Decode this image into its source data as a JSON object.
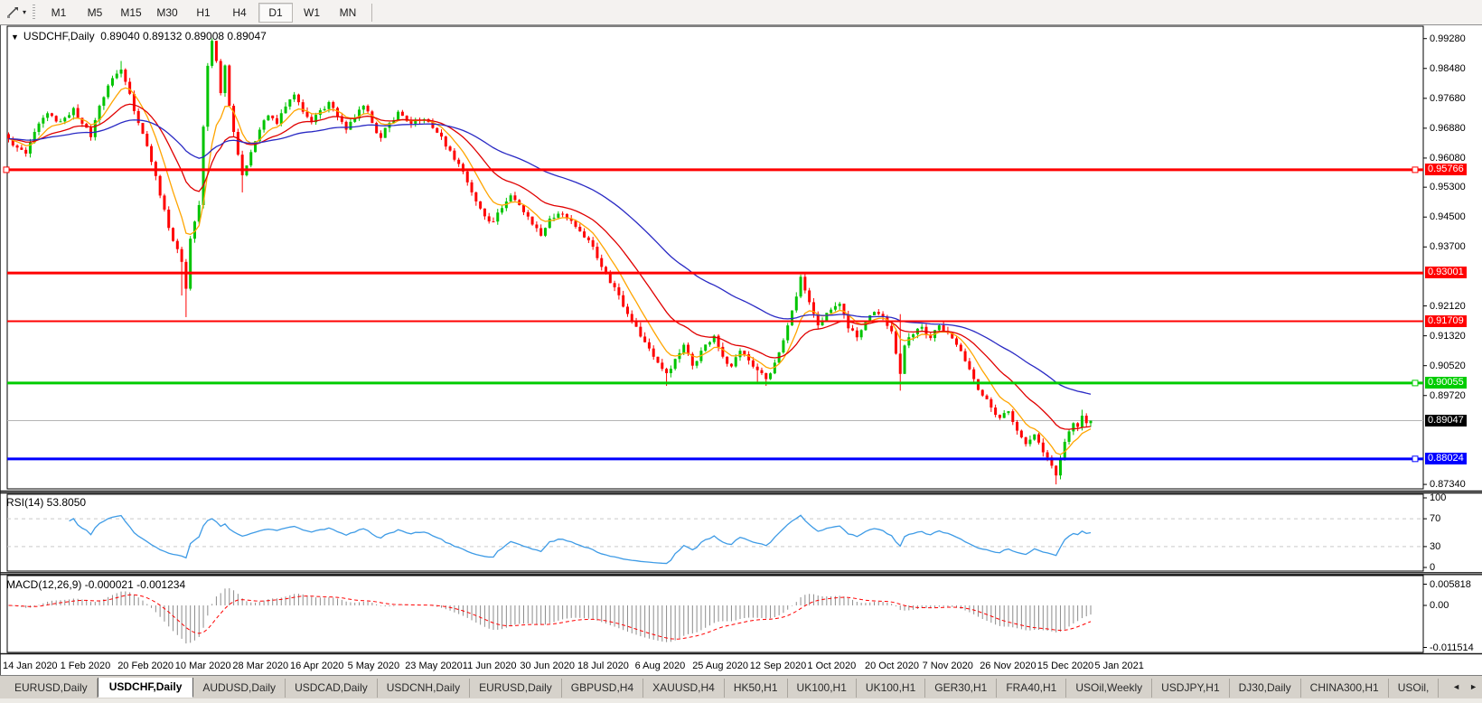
{
  "toolbar": {
    "tool_icon": "trendline-cursor",
    "timeframes": [
      {
        "label": "M1",
        "active": false
      },
      {
        "label": "M5",
        "active": false
      },
      {
        "label": "M15",
        "active": false
      },
      {
        "label": "M30",
        "active": false
      },
      {
        "label": "H1",
        "active": false
      },
      {
        "label": "H4",
        "active": false
      },
      {
        "label": "D1",
        "active": true
      },
      {
        "label": "W1",
        "active": false
      },
      {
        "label": "MN",
        "active": false
      }
    ]
  },
  "chart": {
    "title": "USDCHF,Daily",
    "quotes": "0.89040 0.89132 0.89008 0.89047",
    "dropdown_glyph": "▼",
    "axis_ticks": [
      {
        "label": "0.99280",
        "price": 0.9928
      },
      {
        "label": "0.98480",
        "price": 0.9848
      },
      {
        "label": "0.97680",
        "price": 0.9768
      },
      {
        "label": "0.96880",
        "price": 0.9688
      },
      {
        "label": "0.96080",
        "price": 0.9608
      },
      {
        "label": "0.95300",
        "price": 0.953
      },
      {
        "label": "0.94500",
        "price": 0.945
      },
      {
        "label": "0.93700",
        "price": 0.937
      },
      {
        "label": "0.92120",
        "price": 0.9212
      },
      {
        "label": "0.91320",
        "price": 0.9132
      },
      {
        "label": "0.90520",
        "price": 0.9052
      },
      {
        "label": "0.89720",
        "price": 0.8972
      },
      {
        "label": "0.87340",
        "price": 0.8734
      }
    ],
    "hlines": [
      {
        "label": "0.95766",
        "price": 0.95766,
        "color": "#ff0000",
        "width": 3,
        "handle_left": true,
        "handle_right": true
      },
      {
        "label": "0.93001",
        "price": 0.93001,
        "color": "#ff0000",
        "width": 3,
        "handle_left": false,
        "handle_right": false
      },
      {
        "label": "0.91709",
        "price": 0.91709,
        "color": "#ff0000",
        "width": 2,
        "handle_left": false,
        "handle_right": false
      },
      {
        "label": "0.90055",
        "price": 0.90055,
        "color": "#00cc00",
        "width": 3,
        "handle_left": false,
        "handle_right": true
      },
      {
        "label": "0.88024",
        "price": 0.88024,
        "color": "#0000ff",
        "width": 3,
        "handle_left": false,
        "handle_right": true
      }
    ],
    "current_price": {
      "label": "0.89047",
      "price": 0.89047,
      "line_color": "#b4b4b4",
      "badge_color": "#000000"
    },
    "dates": [
      "14 Jan 2020",
      "1 Feb 2020",
      "20 Feb 2020",
      "10 Mar 2020",
      "28 Mar 2020",
      "16 Apr 2020",
      "5 May 2020",
      "23 May 2020",
      "11 Jun 2020",
      "30 Jun 2020",
      "18 Jul 2020",
      "6 Aug 2020",
      "25 Aug 2020",
      "12 Sep 2020",
      "1 Oct 2020",
      "20 Oct 2020",
      "7 Nov 2020",
      "26 Nov 2020",
      "15 Dec 2020",
      "5 Jan 2021"
    ]
  },
  "rsi_panel": {
    "label": "RSI(14) 53.8050",
    "ticks": [
      {
        "label": "100",
        "value": 100
      },
      {
        "label": "70",
        "value": 70
      },
      {
        "label": "30",
        "value": 30
      },
      {
        "label": "0",
        "value": 0
      }
    ],
    "levels": [
      70,
      30
    ],
    "line_color": "#3e9be6",
    "level_color": "#c9c9c9"
  },
  "macd_panel": {
    "label": "MACD(12,26,9) -0.000021 -0.001234",
    "ticks": [
      {
        "label": "0.005818",
        "value": 0.005818
      },
      {
        "label": "0.00",
        "value": 0
      },
      {
        "label": "-0.011514",
        "value": -0.011514
      }
    ],
    "histogram_color": "#8c8c8c",
    "signal_color": "#ff0000"
  },
  "tabs": {
    "items": [
      {
        "label": "EURUSD,Daily",
        "active": false
      },
      {
        "label": "USDCHF,Daily",
        "active": true
      },
      {
        "label": "AUDUSD,Daily",
        "active": false
      },
      {
        "label": "USDCAD,Daily",
        "active": false
      },
      {
        "label": "USDCNH,Daily",
        "active": false
      },
      {
        "label": "EURUSD,Daily",
        "active": false
      },
      {
        "label": "GBPUSD,H4",
        "active": false
      },
      {
        "label": "XAUUSD,H4",
        "active": false
      },
      {
        "label": "HK50,H1",
        "active": false
      },
      {
        "label": "UK100,H1",
        "active": false
      },
      {
        "label": "UK100,H1",
        "active": false
      },
      {
        "label": "GER30,H1",
        "active": false
      },
      {
        "label": "FRA40,H1",
        "active": false
      },
      {
        "label": "USOil,Weekly",
        "active": false
      },
      {
        "label": "USDJPY,H1",
        "active": false
      },
      {
        "label": "DJ30,Daily",
        "active": false
      },
      {
        "label": "CHINA300,H1",
        "active": false
      },
      {
        "label": "USOil,",
        "active": false
      }
    ],
    "scroll_left": "◄",
    "scroll_right": "►"
  },
  "chart_data": {
    "type": "candlestick",
    "symbol": "USDCHF",
    "timeframe": "Daily",
    "bars": 251,
    "x_range": [
      "14 Jan 2020",
      "5 Jan 2021"
    ],
    "y_axis_range": [
      0.8722,
      0.9961
    ],
    "last_ohlc": {
      "open": 0.8904,
      "high": 0.89132,
      "low": 0.89008,
      "close": 0.89047
    },
    "up_color": "#00c400",
    "down_color": "#ff0000",
    "levels": [
      0.95766,
      0.93001,
      0.91709,
      0.90055,
      0.88024
    ],
    "moving_averages": [
      {
        "name": "fast",
        "period": 8,
        "color": "#ffa500"
      },
      {
        "name": "medium",
        "period": 21,
        "color": "#e00000"
      },
      {
        "name": "slow",
        "period": 55,
        "color": "#2a2ac4"
      }
    ],
    "indicators": [
      {
        "name": "RSI",
        "period": 14,
        "last": 53.805,
        "range": [
          0,
          100
        ],
        "levels": [
          70,
          30
        ]
      },
      {
        "name": "MACD",
        "fast": 12,
        "slow": 26,
        "signal": 9,
        "last_main": -2.1e-05,
        "last_signal": -0.001234,
        "panel_range": [
          -0.011514,
          0.005818
        ]
      }
    ],
    "price_path_anchors_comment": "[barIndex, close, highOverride|null, lowOverride|null] approx values read from chart",
    "price_path": [
      [
        0,
        0.966
      ],
      [
        2,
        0.9636
      ],
      [
        4,
        0.962
      ],
      [
        6,
        0.9678
      ],
      [
        9,
        0.9728
      ],
      [
        11,
        0.9706
      ],
      [
        13,
        0.9716
      ],
      [
        15,
        0.9742
      ],
      [
        17,
        0.97
      ],
      [
        19,
        0.9664
      ],
      [
        21,
        0.9748
      ],
      [
        24,
        0.9822
      ],
      [
        26,
        0.9845,
        0.9868,
        null
      ],
      [
        28,
        0.978
      ],
      [
        30,
        0.9702
      ],
      [
        32,
        0.964
      ],
      [
        34,
        0.956
      ],
      [
        36,
        0.947
      ],
      [
        38,
        0.9386
      ],
      [
        40,
        0.933,
        null,
        0.924
      ],
      [
        41,
        0.9258,
        null,
        0.9182
      ],
      [
        42,
        0.9392
      ],
      [
        44,
        0.9482
      ],
      [
        45,
        0.9692
      ],
      [
        46,
        0.9855
      ],
      [
        47,
        0.9922,
        0.9928,
        null
      ],
      [
        48,
        0.9868
      ],
      [
        49,
        0.9782
      ],
      [
        50,
        0.9856
      ],
      [
        51,
        0.9748
      ],
      [
        52,
        0.9678
      ],
      [
        54,
        0.9562,
        null,
        0.9516
      ],
      [
        56,
        0.9624
      ],
      [
        58,
        0.9684
      ],
      [
        60,
        0.9722
      ],
      [
        62,
        0.97
      ],
      [
        64,
        0.9746
      ],
      [
        66,
        0.9778
      ],
      [
        68,
        0.9732
      ],
      [
        70,
        0.9704
      ],
      [
        72,
        0.9736
      ],
      [
        74,
        0.9758
      ],
      [
        76,
        0.972
      ],
      [
        78,
        0.9684
      ],
      [
        80,
        0.9714
      ],
      [
        82,
        0.9748
      ],
      [
        84,
        0.9702
      ],
      [
        86,
        0.9662
      ],
      [
        88,
        0.9702
      ],
      [
        90,
        0.9732
      ],
      [
        93,
        0.97
      ],
      [
        96,
        0.9712
      ],
      [
        99,
        0.9676
      ],
      [
        102,
        0.9628
      ],
      [
        105,
        0.9572
      ],
      [
        108,
        0.9492
      ],
      [
        110,
        0.9452
      ],
      [
        112,
        0.9438
      ],
      [
        114,
        0.9474
      ],
      [
        116,
        0.9508
      ],
      [
        118,
        0.9482
      ],
      [
        121,
        0.943
      ],
      [
        123,
        0.94
      ],
      [
        125,
        0.9446
      ],
      [
        128,
        0.9458
      ],
      [
        131,
        0.9424
      ],
      [
        134,
        0.9388
      ],
      [
        136,
        0.934
      ],
      [
        138,
        0.93
      ],
      [
        140,
        0.9262
      ],
      [
        142,
        0.921
      ],
      [
        144,
        0.917
      ],
      [
        146,
        0.913
      ],
      [
        148,
        0.9098
      ],
      [
        150,
        0.906
      ],
      [
        152,
        0.9032,
        null,
        0.8998
      ],
      [
        154,
        0.907
      ],
      [
        156,
        0.9108
      ],
      [
        158,
        0.9052
      ],
      [
        160,
        0.9092
      ],
      [
        163,
        0.9132
      ],
      [
        165,
        0.9076
      ],
      [
        167,
        0.905
      ],
      [
        169,
        0.9092
      ],
      [
        171,
        0.9066
      ],
      [
        173,
        0.904,
        null,
        0.9006
      ],
      [
        175,
        0.9016,
        null,
        0.8998
      ],
      [
        177,
        0.906
      ],
      [
        179,
        0.912
      ],
      [
        181,
        0.92
      ],
      [
        183,
        0.929,
        0.9296,
        null
      ],
      [
        185,
        0.9222
      ],
      [
        187,
        0.916
      ],
      [
        190,
        0.9202
      ],
      [
        192,
        0.9218
      ],
      [
        194,
        0.9152
      ],
      [
        196,
        0.9128
      ],
      [
        198,
        0.917
      ],
      [
        200,
        0.9196
      ],
      [
        202,
        0.9182
      ],
      [
        204,
        0.9144
      ],
      [
        206,
        0.903,
        0.919,
        0.8985
      ],
      [
        207,
        0.9106
      ],
      [
        209,
        0.9136
      ],
      [
        211,
        0.9156
      ],
      [
        213,
        0.9126
      ],
      [
        215,
        0.916
      ],
      [
        217,
        0.914
      ],
      [
        219,
        0.9108
      ],
      [
        221,
        0.9064
      ],
      [
        223,
        0.9016
      ],
      [
        225,
        0.8972
      ],
      [
        227,
        0.894
      ],
      [
        229,
        0.8912
      ],
      [
        231,
        0.893
      ],
      [
        233,
        0.8878
      ],
      [
        235,
        0.8842
      ],
      [
        237,
        0.8868
      ],
      [
        239,
        0.882
      ],
      [
        241,
        0.8784
      ],
      [
        242,
        0.8758,
        null,
        0.8734
      ],
      [
        243,
        0.88
      ],
      [
        244,
        0.8848
      ],
      [
        245,
        0.8876
      ],
      [
        246,
        0.8898
      ],
      [
        247,
        0.8888
      ],
      [
        248,
        0.8918,
        0.8934,
        null
      ],
      [
        249,
        0.8898
      ],
      [
        250,
        0.89047
      ]
    ]
  }
}
